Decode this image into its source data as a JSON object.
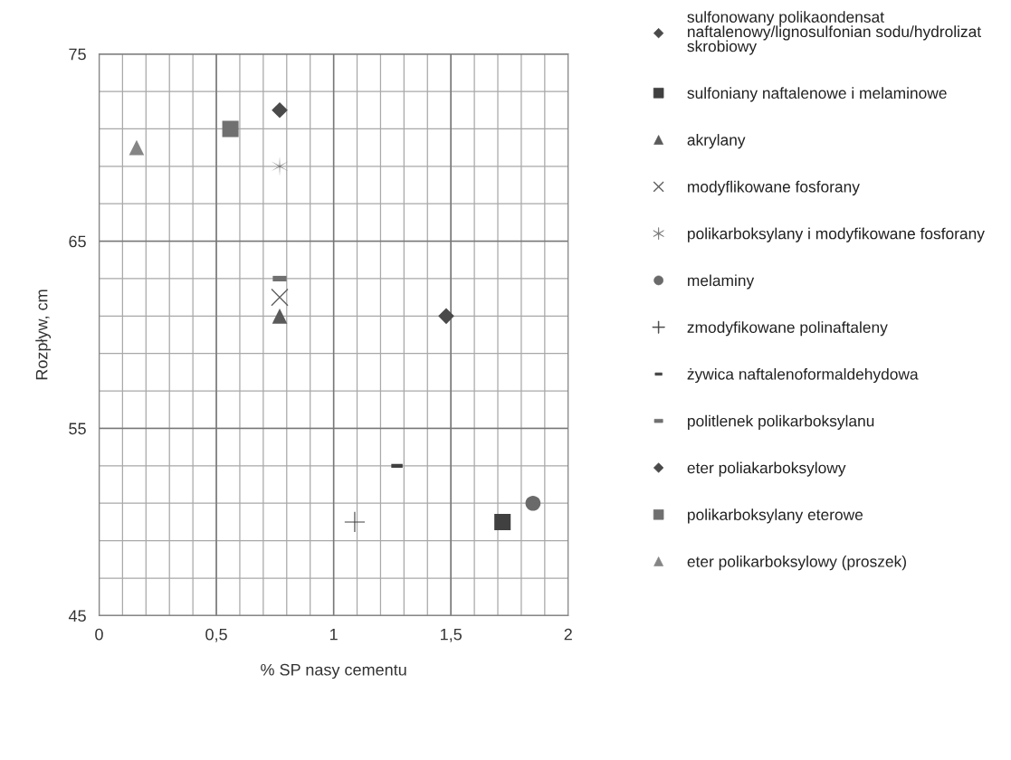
{
  "chart_data": {
    "type": "scatter",
    "xlabel": "% SP nasy cementu",
    "ylabel": "Rozpływ, cm",
    "xlim": [
      0,
      2
    ],
    "ylim": [
      45,
      75
    ],
    "xticks": [
      0,
      {
        "value": 0.1,
        "label": null
      },
      {
        "value": 0.2,
        "label": null
      },
      {
        "value": 0.3,
        "label": null
      },
      {
        "value": 0.4,
        "label": null
      },
      {
        "value": 0.5,
        "label": "0,5"
      },
      {
        "value": 0.6,
        "label": null
      },
      {
        "value": 0.7,
        "label": null
      },
      {
        "value": 0.8,
        "label": null
      },
      {
        "value": 0.9,
        "label": null
      },
      1,
      {
        "value": 1.1,
        "label": null
      },
      {
        "value": 1.2,
        "label": null
      },
      {
        "value": 1.3,
        "label": null
      },
      {
        "value": 1.4,
        "label": null
      },
      {
        "value": 1.5,
        "label": "1,5"
      },
      {
        "value": 1.6,
        "label": null
      },
      {
        "value": 1.7,
        "label": null
      },
      {
        "value": 1.8,
        "label": null
      },
      {
        "value": 1.9,
        "label": null
      },
      2
    ],
    "yticks": [
      45,
      {
        "value": 47,
        "label": null
      },
      {
        "value": 49,
        "label": null
      },
      {
        "value": 51,
        "label": null
      },
      {
        "value": 53,
        "label": null
      },
      55,
      {
        "value": 57,
        "label": null
      },
      {
        "value": 59,
        "label": null
      },
      {
        "value": 61,
        "label": null
      },
      {
        "value": 63,
        "label": null
      },
      65,
      {
        "value": 67,
        "label": null
      },
      {
        "value": 69,
        "label": null
      },
      {
        "value": 71,
        "label": null
      },
      {
        "value": 73,
        "label": null
      },
      75
    ],
    "grid": true,
    "legend": "right",
    "series": [
      {
        "name": "sulfonowany polikaondensat naftalenowy/lignosulfonian sodu/hydrolizat skrobiowy",
        "color": "#4a4a4a",
        "marker": "diamond",
        "x": [
          0.77
        ],
        "values": [
          72
        ]
      },
      {
        "name": "sulfoniany naftalenowe i melaminowe",
        "color": "#404040",
        "marker": "square",
        "x": [
          1.72
        ],
        "values": [
          50
        ]
      },
      {
        "name": "akrylany",
        "color": "#5a5a5a",
        "marker": "triangle",
        "x": [
          0.77
        ],
        "values": [
          61
        ]
      },
      {
        "name": "modyflikowane fosforany",
        "color": "#606060",
        "marker": "cross",
        "x": [
          0.77
        ],
        "values": [
          62
        ]
      },
      {
        "name": "polikarboksylany i modyfikowane fosforany",
        "color": "#707070",
        "x": [
          0.77
        ],
        "values": [
          69
        ]
      },
      {
        "name": "melaminy",
        "color": "#6a6a6a",
        "marker": "circle",
        "x": [
          1.85
        ],
        "values": [
          51
        ]
      },
      {
        "name": "zmodyfikowane polinaftaleny",
        "color": "#404040",
        "marker": "plus",
        "x": [
          1.09
        ],
        "values": [
          50
        ]
      },
      {
        "name": "żywica naftalenoformaldehydowa",
        "color": "#404040",
        "x": [
          1.27
        ],
        "values": [
          53
        ]
      },
      {
        "name": "politlenek polikarboksylanu",
        "color": "#707070",
        "x": [
          0.77
        ],
        "values": [
          63
        ]
      },
      {
        "name": "eter poliakarboksylowy",
        "color": "#4a4a4a",
        "marker": "diamond",
        "x": [
          1.48
        ],
        "values": [
          61
        ]
      },
      {
        "name": "polikarboksylany eterowe",
        "color": "#707070",
        "marker": "square",
        "x": [
          0.56
        ],
        "values": [
          71
        ]
      },
      {
        "name": "eter polikarboksylowy (proszek)",
        "color": "#858585",
        "marker": "triangle",
        "x": [
          0.16
        ],
        "values": [
          70
        ]
      }
    ]
  }
}
